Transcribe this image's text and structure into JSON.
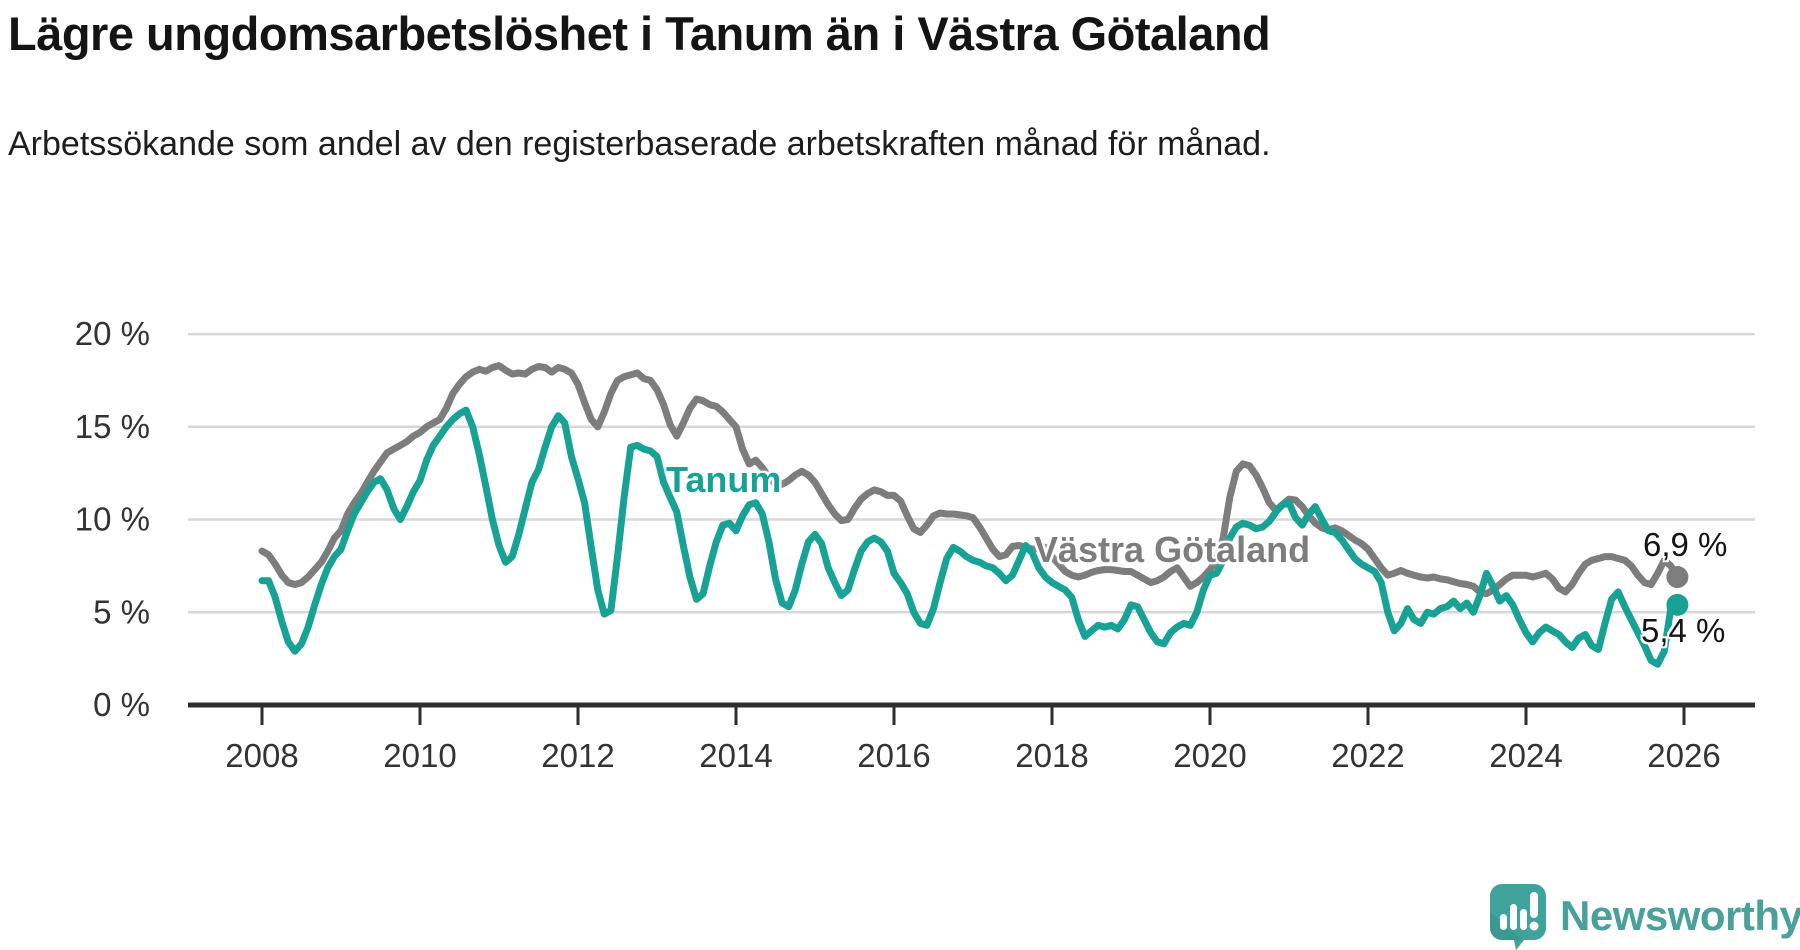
{
  "header": {
    "title": "Lägre ungdomsarbetslöshet i Tanum än i Västra Götaland",
    "subtitle": "Arbetssökande som andel av den registerbaserade arbetskraften månad för månad."
  },
  "chart_data": {
    "type": "line",
    "unit": "%",
    "grid": "horizontal-only",
    "legend_position": "inline-labels-on-lines",
    "x_axis": {
      "min": 2007.05,
      "max": 2026.9,
      "tick_values": [
        2008,
        2010,
        2012,
        2014,
        2016,
        2018,
        2020,
        2022,
        2024,
        2026
      ],
      "tick_labels": [
        "2008",
        "2010",
        "2012",
        "2014",
        "2016",
        "2018",
        "2020",
        "2022",
        "2024",
        "2026"
      ]
    },
    "y_axis": {
      "min": 0,
      "max": 22.9,
      "tick_values": [
        20,
        15,
        10,
        5,
        0
      ],
      "tick_labels": [
        "20 %",
        "15 %",
        "10 %",
        "5 %",
        "0 %"
      ],
      "gridline_values": [
        20,
        15,
        10,
        5
      ]
    },
    "colors": {
      "tanum": "#17A295",
      "vastra_gotaland": "#7D7D7D",
      "gridline": "#D8D8D8",
      "axis": "#2E2E2E",
      "tick_text": "#333333"
    },
    "series": [
      {
        "name": "Västra Götaland",
        "color": "#7D7D7D",
        "end_label": "6,9 %",
        "end_value": 6.9,
        "start_year": 2008,
        "points_per_year": 12,
        "values": [
          8.3,
          8.1,
          7.6,
          7.0,
          6.6,
          6.5,
          6.6,
          6.9,
          7.3,
          7.7,
          8.3,
          9.0,
          9.4,
          10.3,
          10.9,
          11.4,
          12.0,
          12.6,
          13.1,
          13.6,
          13.8,
          14.0,
          14.2,
          14.5,
          14.7,
          15.0,
          15.2,
          15.4,
          16.0,
          16.8,
          17.3,
          17.7,
          17.95,
          18.1,
          18.0,
          18.2,
          18.3,
          18.05,
          17.85,
          17.9,
          17.85,
          18.1,
          18.25,
          18.2,
          17.95,
          18.2,
          18.1,
          17.9,
          17.3,
          16.3,
          15.4,
          15.0,
          15.8,
          16.8,
          17.5,
          17.7,
          17.8,
          17.9,
          17.6,
          17.5,
          17.0,
          16.2,
          15.1,
          14.5,
          15.2,
          16.0,
          16.5,
          16.4,
          16.2,
          16.1,
          15.8,
          15.4,
          15.0,
          13.8,
          13.0,
          13.2,
          12.8,
          12.3,
          11.9,
          11.9,
          12.1,
          12.4,
          12.6,
          12.4,
          12.0,
          11.4,
          10.8,
          10.3,
          9.95,
          10.0,
          10.6,
          11.1,
          11.4,
          11.6,
          11.5,
          11.3,
          11.3,
          11.0,
          10.2,
          9.5,
          9.3,
          9.7,
          10.2,
          10.35,
          10.3,
          10.3,
          10.25,
          10.2,
          10.1,
          9.6,
          9.0,
          8.4,
          8.0,
          8.1,
          8.55,
          8.6,
          8.5,
          8.4,
          8.45,
          8.5,
          8.0,
          7.6,
          7.2,
          7.0,
          6.9,
          7.0,
          7.15,
          7.25,
          7.3,
          7.3,
          7.25,
          7.2,
          7.2,
          7.0,
          6.8,
          6.6,
          6.7,
          6.9,
          7.2,
          7.4,
          6.9,
          6.4,
          6.6,
          6.9,
          7.3,
          7.8,
          9.0,
          11.2,
          12.6,
          13.0,
          12.9,
          12.4,
          11.7,
          10.9,
          10.5,
          10.8,
          11.1,
          11.05,
          10.7,
          10.2,
          9.8,
          9.55,
          9.45,
          9.55,
          9.4,
          9.15,
          8.9,
          8.7,
          8.4,
          7.9,
          7.4,
          7.0,
          7.1,
          7.25,
          7.1,
          7.0,
          6.9,
          6.85,
          6.9,
          6.8,
          6.75,
          6.65,
          6.55,
          6.5,
          6.4,
          6.1,
          6.0,
          6.2,
          6.5,
          6.8,
          7.0,
          7.0,
          7.0,
          6.9,
          7.0,
          7.1,
          6.8,
          6.3,
          6.1,
          6.5,
          7.1,
          7.6,
          7.8,
          7.9,
          8.0,
          8.0,
          7.9,
          7.8,
          7.5,
          7.0,
          6.6,
          6.5,
          7.1,
          7.8,
          7.5,
          6.9
        ]
      },
      {
        "name": "Tanum",
        "color": "#17A295",
        "end_label": "5,4 %",
        "end_value": 5.4,
        "start_year": 2008,
        "points_per_year": 12,
        "values": [
          6.7,
          6.7,
          5.8,
          4.5,
          3.4,
          2.9,
          3.3,
          4.2,
          5.4,
          6.5,
          7.4,
          8.0,
          8.4,
          9.4,
          10.3,
          10.9,
          11.5,
          12.0,
          12.2,
          11.6,
          10.6,
          10.0,
          10.7,
          11.5,
          12.1,
          13.2,
          14.0,
          14.5,
          15.0,
          15.4,
          15.7,
          15.9,
          15.0,
          13.5,
          11.8,
          10.0,
          8.6,
          7.7,
          8.0,
          9.2,
          10.6,
          12.0,
          12.7,
          13.9,
          15.0,
          15.6,
          15.2,
          13.4,
          12.2,
          10.9,
          8.5,
          6.2,
          4.9,
          5.1,
          8.0,
          11.2,
          13.9,
          14.0,
          13.8,
          13.7,
          13.4,
          12.0,
          11.2,
          10.4,
          8.6,
          6.9,
          5.7,
          6.0,
          7.5,
          8.8,
          9.7,
          9.8,
          9.4,
          10.2,
          10.8,
          10.9,
          10.3,
          8.8,
          6.8,
          5.5,
          5.3,
          6.2,
          7.6,
          8.8,
          9.2,
          8.7,
          7.4,
          6.6,
          5.9,
          6.2,
          7.3,
          8.3,
          8.8,
          9.0,
          8.8,
          8.3,
          7.1,
          6.6,
          6.0,
          5.0,
          4.4,
          4.3,
          5.2,
          6.6,
          7.9,
          8.5,
          8.3,
          8.0,
          7.8,
          7.7,
          7.5,
          7.4,
          7.1,
          6.7,
          7.0,
          7.8,
          8.6,
          8.2,
          7.4,
          6.9,
          6.6,
          6.4,
          6.2,
          5.8,
          4.6,
          3.7,
          4.0,
          4.3,
          4.2,
          4.3,
          4.1,
          4.6,
          5.4,
          5.3,
          4.6,
          3.9,
          3.4,
          3.3,
          3.9,
          4.2,
          4.4,
          4.3,
          5.0,
          6.2,
          7.0,
          7.1,
          7.8,
          9.0,
          9.6,
          9.8,
          9.7,
          9.5,
          9.6,
          9.9,
          10.4,
          10.8,
          10.9,
          10.1,
          9.7,
          10.3,
          10.7,
          10.0,
          9.4,
          9.3,
          8.9,
          8.4,
          7.9,
          7.6,
          7.4,
          7.2,
          6.6,
          5.0,
          4.0,
          4.4,
          5.2,
          4.6,
          4.4,
          5.0,
          4.9,
          5.2,
          5.3,
          5.6,
          5.2,
          5.5,
          5.0,
          5.9,
          7.1,
          6.4,
          5.6,
          5.9,
          5.4,
          4.6,
          3.9,
          3.4,
          3.9,
          4.2,
          4.0,
          3.8,
          3.4,
          3.1,
          3.6,
          3.8,
          3.2,
          3.0,
          4.4,
          5.7,
          6.1,
          5.3,
          4.6,
          3.9,
          3.2,
          2.4,
          2.2,
          2.9,
          5.2,
          5.4
        ]
      }
    ]
  },
  "footer": {
    "brand": "Newsworthy",
    "logo_icon": "bar-chart-speech-bubble-icon"
  }
}
